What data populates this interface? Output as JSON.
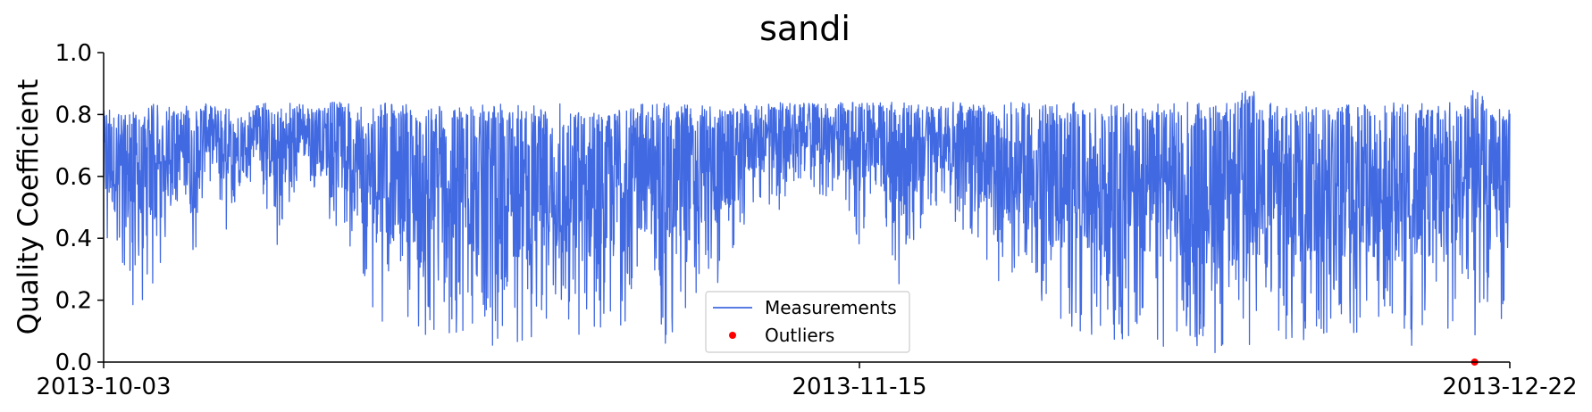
{
  "chart_data": {
    "type": "line",
    "title": "sandi",
    "xlabel": "",
    "ylabel": "Quality Coefficient",
    "x_start": "2013-10-03",
    "x_end": "2013-12-22",
    "ylim": [
      0.0,
      1.0
    ],
    "x_ticks": [
      "2013-10-03",
      "2013-11-15",
      "2013-12-22"
    ],
    "y_ticks": [
      "0.0",
      "0.2",
      "0.4",
      "0.6",
      "0.8",
      "1.0"
    ],
    "grid": false,
    "legend_position": "bottom-center",
    "series": [
      {
        "name": "Measurements",
        "color": "#4169e1",
        "style": "line",
        "x": [
          "2013-10-03",
          "2013-10-04",
          "2013-10-05",
          "2013-10-06",
          "2013-10-07",
          "2013-10-08",
          "2013-10-09",
          "2013-10-10",
          "2013-10-11",
          "2013-10-12",
          "2013-10-13",
          "2013-10-14",
          "2013-10-15",
          "2013-10-16",
          "2013-10-17",
          "2013-10-18",
          "2013-10-19",
          "2013-10-20",
          "2013-10-21",
          "2013-10-22",
          "2013-10-23",
          "2013-10-24",
          "2013-10-25",
          "2013-10-26",
          "2013-10-27",
          "2013-10-28",
          "2013-10-29",
          "2013-10-30",
          "2013-10-31",
          "2013-11-01",
          "2013-11-02",
          "2013-11-03",
          "2013-11-04",
          "2013-11-05",
          "2013-11-06",
          "2013-11-07",
          "2013-11-08",
          "2013-11-09",
          "2013-11-10",
          "2013-11-11",
          "2013-11-12",
          "2013-11-13",
          "2013-11-14",
          "2013-11-15",
          "2013-11-16",
          "2013-11-17",
          "2013-11-18",
          "2013-11-19",
          "2013-11-20",
          "2013-11-21",
          "2013-11-22",
          "2013-11-23",
          "2013-11-24",
          "2013-11-25",
          "2013-11-26",
          "2013-11-27",
          "2013-11-28",
          "2013-11-29",
          "2013-11-30",
          "2013-12-01",
          "2013-12-02",
          "2013-12-03",
          "2013-12-04",
          "2013-12-05",
          "2013-12-06",
          "2013-12-07",
          "2013-12-08",
          "2013-12-09",
          "2013-12-10",
          "2013-12-11",
          "2013-12-12",
          "2013-12-13",
          "2013-12-14",
          "2013-12-15",
          "2013-12-16",
          "2013-12-17",
          "2013-12-18",
          "2013-12-19",
          "2013-12-20",
          "2013-12-21",
          "2013-12-22"
        ],
        "y_max": [
          0.83,
          0.82,
          0.81,
          0.84,
          0.82,
          0.83,
          0.84,
          0.82,
          0.8,
          0.84,
          0.83,
          0.84,
          0.82,
          0.84,
          0.84,
          0.83,
          0.84,
          0.84,
          0.83,
          0.84,
          0.84,
          0.83,
          0.84,
          0.84,
          0.83,
          0.84,
          0.84,
          0.84,
          0.84,
          0.84,
          0.84,
          0.84,
          0.84,
          0.84,
          0.84,
          0.82,
          0.83,
          0.84,
          0.84,
          0.84,
          0.84,
          0.84,
          0.84,
          0.84,
          0.84,
          0.84,
          0.84,
          0.84,
          0.84,
          0.84,
          0.84,
          0.84,
          0.84,
          0.84,
          0.84,
          0.84,
          0.84,
          0.84,
          0.84,
          0.84,
          0.84,
          0.84,
          0.84,
          0.84,
          0.84,
          0.91,
          0.84,
          0.84,
          0.83,
          0.84,
          0.84,
          0.84,
          0.84,
          0.84,
          0.84,
          0.84,
          0.84,
          0.84,
          0.89,
          0.83,
          0.82
        ],
        "y_min": [
          0.34,
          0.3,
          0.09,
          0.22,
          0.55,
          0.28,
          0.57,
          0.41,
          0.6,
          0.55,
          0.35,
          0.58,
          0.56,
          0.44,
          0.35,
          0.2,
          0.12,
          0.2,
          0.03,
          0.1,
          0.05,
          0.1,
          0.05,
          0.08,
          0.05,
          0.05,
          0.04,
          0.06,
          0.05,
          0.06,
          0.15,
          0.22,
          0.05,
          0.1,
          0.24,
          0.25,
          0.35,
          0.52,
          0.47,
          0.5,
          0.6,
          0.52,
          0.55,
          0.36,
          0.54,
          0.22,
          0.35,
          0.5,
          0.5,
          0.4,
          0.35,
          0.25,
          0.25,
          0.2,
          0.12,
          0.1,
          0.1,
          0.05,
          0.05,
          0.08,
          0.05,
          0.05,
          0.04,
          0.03,
          0.02,
          0.02,
          0.02,
          0.05,
          0.05,
          0.05,
          0.08,
          0.05,
          0.05,
          0.05,
          0.05,
          0.05,
          0.05,
          0.06,
          0.08,
          0.12,
          0.13
        ]
      },
      {
        "name": "Outliers",
        "color": "#ff0000",
        "style": "marker",
        "x": [
          "2013-12-20"
        ],
        "y": [
          0.0
        ]
      }
    ]
  }
}
